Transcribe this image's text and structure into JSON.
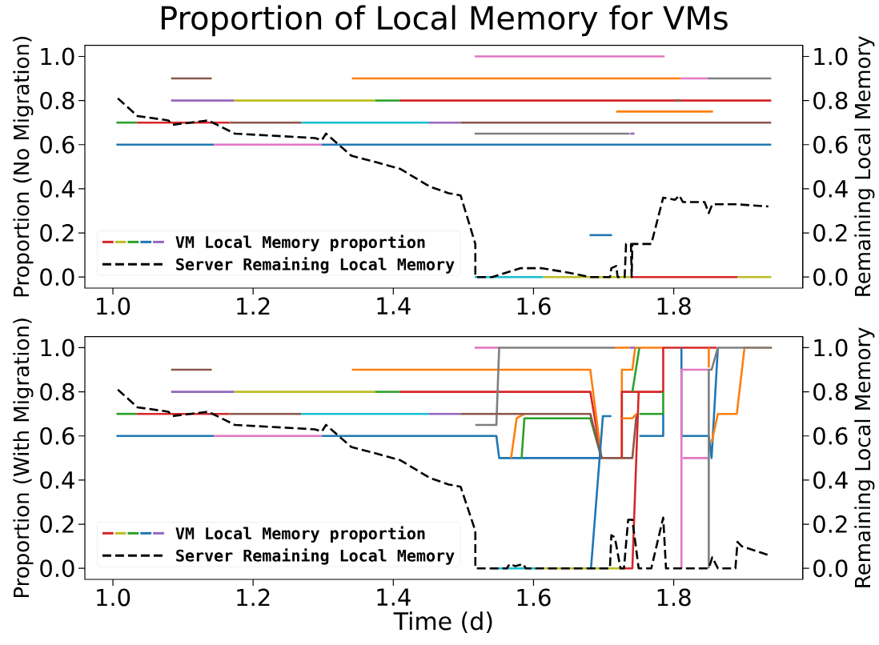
{
  "chart_data": [
    {
      "type": "line",
      "title": "Proportion of Local Memory for VMs",
      "ylabel": "Proportion (No Migration)",
      "y2label": "Remaining Local Memory",
      "xlim": [
        0.96,
        1.984
      ],
      "xticks": [
        {
          "value": 1.0,
          "label": "1.0"
        },
        {
          "value": 1.2,
          "label": "1.2"
        },
        {
          "value": 1.4,
          "label": "1.4"
        },
        {
          "value": 1.6,
          "label": "1.6"
        },
        {
          "value": 1.8,
          "label": "1.8"
        }
      ],
      "ylim": [
        -0.05,
        1.05
      ],
      "yticks": [
        {
          "value": 0,
          "label": "0.0"
        },
        {
          "value": 0.2,
          "label": "0.2"
        },
        {
          "value": 0.4,
          "label": "0.4"
        },
        {
          "value": 0.6,
          "label": "0.6"
        },
        {
          "value": 0.8,
          "label": "0.8"
        },
        {
          "value": 1.0,
          "label": "1.0"
        }
      ],
      "y2lim": [
        -0.05,
        1.05
      ],
      "y2ticks": [
        {
          "value": 0,
          "label": "0.0"
        },
        {
          "value": 0.2,
          "label": "0.2"
        },
        {
          "value": 0.4,
          "label": "0.4"
        },
        {
          "value": 0.6,
          "label": "0.6"
        },
        {
          "value": 0.8,
          "label": "0.8"
        },
        {
          "value": 1.0,
          "label": "1.0"
        }
      ],
      "legend": "bottom left",
      "series": [
        {
          "color": "#d62728",
          "x": [
            1.409,
            1.939
          ],
          "values": [
            0.8,
            0.8
          ]
        },
        {
          "color": "#bcbd22",
          "x": [
            1.173,
            1.374
          ],
          "values": [
            0.8,
            0.8
          ]
        },
        {
          "color": "#2ca02c",
          "x": [
            1.374,
            1.409
          ],
          "values": [
            0.8,
            0.8
          ]
        },
        {
          "color": "#1f77b4",
          "x": [
            1.005,
            1.144
          ],
          "values": [
            0.6,
            0.6
          ]
        },
        {
          "name": "VM Local Memory proportion",
          "color": "#9467bd",
          "x": [
            1.083,
            1.173
          ],
          "values": [
            0.8,
            0.8
          ]
        },
        {
          "color": "#8c564b",
          "x": [
            1.083,
            1.141
          ],
          "values": [
            0.9,
            0.9
          ]
        },
        {
          "color": "#ff7f0e",
          "x": [
            1.341,
            1.81
          ],
          "values": [
            0.9,
            0.9
          ]
        },
        {
          "color": "#e377c2",
          "x": [
            1.81,
            1.848
          ],
          "values": [
            0.9,
            0.9
          ]
        },
        {
          "color": "#7f7f7f",
          "x": [
            1.848,
            1.939
          ],
          "values": [
            0.9,
            0.9
          ]
        },
        {
          "color": "#8c564b",
          "x": [
            1.802,
            1.81
          ],
          "values": [
            0.8,
            0.8
          ]
        },
        {
          "color": "#2ca02c",
          "x": [
            1.005,
            1.034
          ],
          "values": [
            0.7,
            0.7
          ]
        },
        {
          "color": "#d62728",
          "x": [
            1.034,
            1.166
          ],
          "values": [
            0.7,
            0.7
          ]
        },
        {
          "color": "#8c564b",
          "x": [
            1.166,
            1.269
          ],
          "values": [
            0.7,
            0.7
          ]
        },
        {
          "color": "#17becf",
          "x": [
            1.269,
            1.451
          ],
          "values": [
            0.7,
            0.7
          ]
        },
        {
          "color": "#9467bd",
          "x": [
            1.451,
            1.496
          ],
          "values": [
            0.7,
            0.7
          ]
        },
        {
          "color": "#8c564b",
          "x": [
            1.496,
            1.939
          ],
          "values": [
            0.7,
            0.7
          ]
        },
        {
          "color": "#e377c2",
          "x": [
            1.144,
            1.298
          ],
          "values": [
            0.6,
            0.6
          ]
        },
        {
          "color": "#1f77b4",
          "x": [
            1.298,
            1.939
          ],
          "values": [
            0.6,
            0.6
          ]
        },
        {
          "color": "#e377c2",
          "x": [
            1.516,
            1.787
          ],
          "values": [
            1.0,
            1.0
          ]
        },
        {
          "color": "#ff7f0e",
          "x": [
            1.718,
            1.856
          ],
          "values": [
            0.75,
            0.75
          ]
        },
        {
          "color": "#7f7f7f",
          "x": [
            1.516,
            1.737
          ],
          "values": [
            0.65,
            0.65
          ]
        },
        {
          "color": "#9467bd",
          "x": [
            1.738,
            1.744
          ],
          "values": [
            0.65,
            0.65
          ]
        },
        {
          "color": "#1f77b4",
          "x": [
            1.68,
            1.712
          ],
          "values": [
            0.19,
            0.19
          ]
        },
        {
          "color": "#17becf",
          "x": [
            1.516,
            1.614
          ],
          "values": [
            0,
            0
          ]
        },
        {
          "color": "#bcbd22",
          "x": [
            1.614,
            1.741
          ],
          "values": [
            0,
            0
          ]
        },
        {
          "color": "#d62728",
          "x": [
            1.741,
            1.891
          ],
          "values": [
            0,
            0
          ]
        },
        {
          "color": "#bcbd22",
          "x": [
            1.891,
            1.939
          ],
          "values": [
            0,
            0
          ]
        },
        {
          "name": "Server Remaining Local Memory",
          "color": "#000000",
          "axis": "y2",
          "line_style": "dashed",
          "x": [
            1.007,
            1.035,
            1.079,
            1.085,
            1.136,
            1.174,
            1.288,
            1.298,
            1.304,
            1.34,
            1.376,
            1.41,
            1.452,
            1.479,
            1.496,
            1.517,
            1.517,
            1.541,
            1.581,
            1.612,
            1.65,
            1.68,
            1.709,
            1.711,
            1.718,
            1.72,
            1.73,
            1.732,
            1.739,
            1.74,
            1.741,
            1.768,
            1.785,
            1.802,
            1.808,
            1.813,
            1.844,
            1.85,
            1.855,
            1.889,
            1.935
          ],
          "values": [
            0.81,
            0.73,
            0.71,
            0.69,
            0.71,
            0.65,
            0.63,
            0.62,
            0.65,
            0.55,
            0.52,
            0.49,
            0.41,
            0.38,
            0.37,
            0.15,
            0,
            0,
            0.04,
            0.04,
            0.02,
            0,
            0,
            0.04,
            0.05,
            0,
            0,
            0.15,
            0.15,
            0,
            0.15,
            0.15,
            0.36,
            0.35,
            0.37,
            0.34,
            0.34,
            0.29,
            0.33,
            0.33,
            0.32
          ]
        }
      ]
    },
    {
      "type": "line",
      "xlabel": "Time (d)",
      "ylabel": "Proportion (With Migration)",
      "y2label": "Remaining Local Memory",
      "xlim": [
        0.96,
        1.984
      ],
      "xticks": [
        {
          "value": 1.0,
          "label": "1.0"
        },
        {
          "value": 1.2,
          "label": "1.2"
        },
        {
          "value": 1.4,
          "label": "1.4"
        },
        {
          "value": 1.6,
          "label": "1.6"
        },
        {
          "value": 1.8,
          "label": "1.8"
        }
      ],
      "ylim": [
        -0.05,
        1.05
      ],
      "yticks": [
        {
          "value": 0,
          "label": "0.0"
        },
        {
          "value": 0.2,
          "label": "0.2"
        },
        {
          "value": 0.4,
          "label": "0.4"
        },
        {
          "value": 0.6,
          "label": "0.6"
        },
        {
          "value": 0.8,
          "label": "0.8"
        },
        {
          "value": 1.0,
          "label": "1.0"
        }
      ],
      "y2lim": [
        -0.05,
        1.05
      ],
      "y2ticks": [
        {
          "value": 0,
          "label": "0.0"
        },
        {
          "value": 0.2,
          "label": "0.2"
        },
        {
          "value": 0.4,
          "label": "0.4"
        },
        {
          "value": 0.6,
          "label": "0.6"
        },
        {
          "value": 0.8,
          "label": "0.8"
        },
        {
          "value": 1.0,
          "label": "1.0"
        }
      ],
      "legend": "bottom left",
      "series": [
        {
          "color": "#d62728",
          "x": [
            1.409,
            1.681,
            1.697
          ],
          "values": [
            0.8,
            0.8,
            0.5
          ]
        },
        {
          "color": "#bcbd22",
          "x": [
            1.173,
            1.374
          ],
          "values": [
            0.8,
            0.8
          ]
        },
        {
          "color": "#2ca02c",
          "x": [
            1.374,
            1.409
          ],
          "values": [
            0.8,
            0.8
          ]
        },
        {
          "color": "#1f77b4",
          "x": [
            1.005,
            1.144
          ],
          "values": [
            0.6,
            0.6
          ]
        },
        {
          "name": "VM Local Memory proportion",
          "color": "#9467bd",
          "x": [
            1.083,
            1.173
          ],
          "values": [
            0.8,
            0.8
          ]
        },
        {
          "color": "#8c564b",
          "x": [
            1.083,
            1.141
          ],
          "values": [
            0.9,
            0.9
          ]
        },
        {
          "color": "#ff7f0e",
          "x": [
            1.341,
            1.681,
            1.697
          ],
          "values": [
            0.9,
            0.9,
            0.5
          ]
        },
        {
          "color": "#2ca02c",
          "x": [
            1.005,
            1.034
          ],
          "values": [
            0.7,
            0.7
          ]
        },
        {
          "color": "#d62728",
          "x": [
            1.034,
            1.166
          ],
          "values": [
            0.7,
            0.7
          ]
        },
        {
          "color": "#8c564b",
          "x": [
            1.166,
            1.269
          ],
          "values": [
            0.7,
            0.7
          ]
        },
        {
          "color": "#17becf",
          "x": [
            1.269,
            1.451
          ],
          "values": [
            0.7,
            0.7
          ]
        },
        {
          "color": "#9467bd",
          "x": [
            1.451,
            1.496
          ],
          "values": [
            0.7,
            0.7
          ]
        },
        {
          "color": "#e377c2",
          "x": [
            1.144,
            1.298
          ],
          "values": [
            0.6,
            0.6
          ]
        },
        {
          "color": "#1f77b4",
          "x": [
            1.298,
            1.547,
            1.551,
            1.697
          ],
          "values": [
            0.6,
            0.6,
            0.5,
            0.5
          ]
        },
        {
          "color": "#e377c2",
          "x": [
            1.516,
            1.551
          ],
          "values": [
            1.0,
            1.0
          ]
        },
        {
          "color": "#7f7f7f",
          "x": [
            1.517,
            1.547,
            1.551,
            1.716
          ],
          "values": [
            0.65,
            0.65,
            1.0,
            1.0
          ]
        },
        {
          "color": "#ff7f0e",
          "x": [
            1.568,
            1.576,
            1.587
          ],
          "values": [
            0.5,
            0.68,
            0.7
          ]
        },
        {
          "color": "#2ca02c",
          "x": [
            1.583,
            1.587,
            1.681,
            1.697
          ],
          "values": [
            0.5,
            0.68,
            0.68,
            0.5
          ]
        },
        {
          "color": "#8c564b",
          "x": [
            1.496,
            1.681,
            1.697,
            1.741,
            1.747
          ],
          "values": [
            0.7,
            0.7,
            0.5,
            0.5,
            0.7
          ]
        },
        {
          "color": "#1f77b4",
          "x": [
            1.682,
            1.699,
            1.711
          ],
          "values": [
            0,
            0.69,
            0.69
          ]
        },
        {
          "color": "#ff7f0e",
          "x": [
            1.726,
            1.726,
            1.741,
            1.745,
            1.785
          ],
          "values": [
            0.5,
            0.9,
            0.9,
            1.0,
            1.0
          ]
        },
        {
          "color": "#d62728",
          "x": [
            1.726,
            1.726,
            1.785,
            1.785,
            1.861
          ],
          "values": [
            0.5,
            0.8,
            0.8,
            1.0,
            1.0
          ]
        },
        {
          "color": "#ff7f0e",
          "x": [
            1.716,
            1.737
          ],
          "values": [
            1.0,
            1.0
          ]
        },
        {
          "color": "#9467bd",
          "x": [
            1.737,
            1.745
          ],
          "values": [
            1.0,
            1.0
          ]
        },
        {
          "color": "#ff7f0e",
          "x": [
            1.726,
            1.741,
            1.747
          ],
          "values": [
            0.68,
            0.68,
            0.7
          ]
        },
        {
          "color": "#d62728",
          "x": [
            1.724,
            1.741,
            1.75
          ],
          "values": [
            0,
            0,
            0.8
          ]
        },
        {
          "color": "#2ca02c",
          "x": [
            1.741,
            1.751
          ],
          "values": [
            0.8,
            1.0
          ]
        },
        {
          "color": "#2ca02c",
          "x": [
            1.751,
            1.785,
            1.785
          ],
          "values": [
            0.7,
            0.7,
            0.8
          ]
        },
        {
          "color": "#1f77b4",
          "x": [
            1.751,
            1.785,
            1.785
          ],
          "values": [
            0.6,
            0.6,
            0.7
          ]
        },
        {
          "color": "#1f77b4",
          "x": [
            1.811,
            1.811,
            1.85,
            1.854,
            1.863
          ],
          "values": [
            1.0,
            0.6,
            0.6,
            0.5,
            1.0
          ]
        },
        {
          "color": "#e377c2",
          "x": [
            1.811,
            1.811,
            1.85
          ],
          "values": [
            0,
            0.9,
            0.9
          ]
        },
        {
          "color": "#e377c2",
          "x": [
            1.813,
            1.85
          ],
          "values": [
            0.5,
            0.5
          ]
        },
        {
          "color": "#ff7f0e",
          "x": [
            1.85,
            1.85
          ],
          "values": [
            1.0,
            0.91
          ]
        },
        {
          "color": "#ff7f0e",
          "x": [
            1.854,
            1.863,
            1.89,
            1.901,
            1.94
          ],
          "values": [
            0.57,
            0.7,
            0.7,
            1.0,
            1.0
          ]
        },
        {
          "color": "#7f7f7f",
          "x": [
            1.85,
            1.85,
            1.854,
            1.863,
            1.94
          ],
          "values": [
            0,
            0.9,
            0.9,
            1.0,
            1.0
          ]
        },
        {
          "color": "#17becf",
          "x": [
            1.54,
            1.604
          ],
          "values": [
            0,
            0
          ]
        },
        {
          "color": "#bcbd22",
          "x": [
            1.616,
            1.726
          ],
          "values": [
            0,
            0
          ]
        },
        {
          "name": "Server Remaining Local Memory",
          "color": "#000000",
          "axis": "y2",
          "line_style": "dashed",
          "x": [
            1.007,
            1.035,
            1.079,
            1.085,
            1.136,
            1.174,
            1.288,
            1.298,
            1.304,
            1.34,
            1.376,
            1.41,
            1.452,
            1.479,
            1.496,
            1.517,
            1.517,
            1.562,
            1.566,
            1.574,
            1.585,
            1.589,
            1.709,
            1.711,
            1.716,
            1.724,
            1.729,
            1.735,
            1.741,
            1.75,
            1.768,
            1.785,
            1.789,
            1.85,
            1.855,
            1.863,
            1.888,
            1.891,
            1.897,
            1.935
          ],
          "values": [
            0.81,
            0.73,
            0.71,
            0.69,
            0.71,
            0.65,
            0.63,
            0.62,
            0.65,
            0.55,
            0.52,
            0.49,
            0.41,
            0.38,
            0.37,
            0.17,
            0,
            0,
            0.02,
            0.01,
            0.02,
            0,
            0,
            0.15,
            0.14,
            0,
            0,
            0.22,
            0.22,
            0,
            0,
            0.23,
            0,
            0,
            0.05,
            0,
            0,
            0.12,
            0.1,
            0.06
          ]
        }
      ]
    }
  ]
}
